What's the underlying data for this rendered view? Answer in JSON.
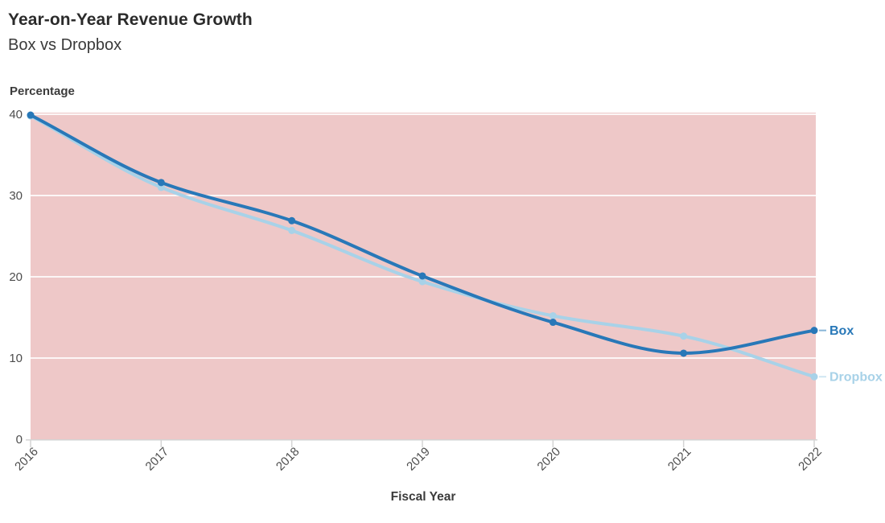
{
  "header": {
    "title": "Year-on-Year Revenue Growth",
    "subtitle": "Box vs Dropbox"
  },
  "chart_data": {
    "type": "line",
    "title": "Year-on-Year Revenue Growth",
    "subtitle": "Box vs Dropbox",
    "xlabel": "Fiscal Year",
    "ylabel": "Percentage",
    "categories": [
      "2016",
      "2017",
      "2018",
      "2019",
      "2020",
      "2021",
      "2022"
    ],
    "series": [
      {
        "name": "Box",
        "color": "#2878b8",
        "values": [
          39.9,
          31.6,
          26.9,
          20.1,
          14.4,
          10.6,
          13.4
        ]
      },
      {
        "name": "Dropbox",
        "color": "#a8d2e8",
        "values": [
          39.8,
          31.0,
          25.7,
          19.4,
          15.2,
          12.7,
          7.7
        ]
      }
    ],
    "ylim": [
      0,
      40
    ],
    "yticks": [
      0,
      10,
      20,
      30,
      40
    ],
    "grid": "horizontal-white-lines",
    "plot_bg": "#eec8c8",
    "axis_line_color": "#d4d4d4",
    "tick_label_color": "#4d4d4d",
    "legend_position": "right-end-labels",
    "x_tick_rotation": -45
  }
}
